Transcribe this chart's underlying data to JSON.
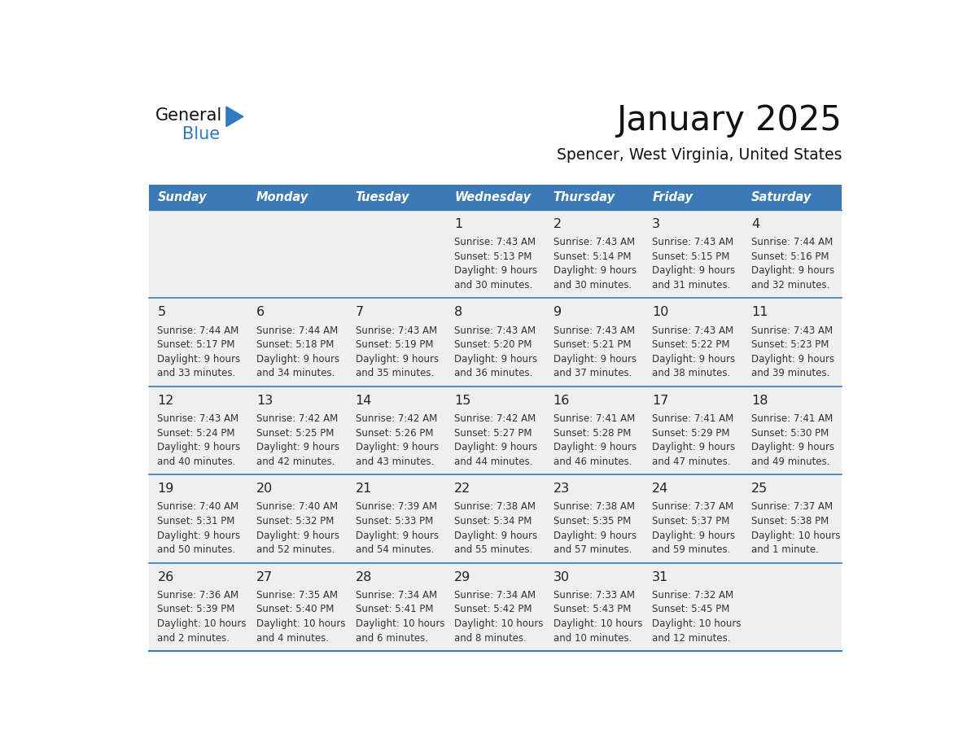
{
  "title": "January 2025",
  "subtitle": "Spencer, West Virginia, United States",
  "header_color": "#3c7ab5",
  "header_text_color": "#ffffff",
  "cell_bg_color": "#efefef",
  "separator_line_color": "#3c7ab5",
  "day_number_color": "#222222",
  "text_color": "#333333",
  "days_of_week": [
    "Sunday",
    "Monday",
    "Tuesday",
    "Wednesday",
    "Thursday",
    "Friday",
    "Saturday"
  ],
  "calendar_data": [
    [
      {
        "day": "",
        "sunrise": "",
        "sunset": "",
        "daylight_l1": "",
        "daylight_l2": ""
      },
      {
        "day": "",
        "sunrise": "",
        "sunset": "",
        "daylight_l1": "",
        "daylight_l2": ""
      },
      {
        "day": "",
        "sunrise": "",
        "sunset": "",
        "daylight_l1": "",
        "daylight_l2": ""
      },
      {
        "day": "1",
        "sunrise": "Sunrise: 7:43 AM",
        "sunset": "Sunset: 5:13 PM",
        "daylight_l1": "Daylight: 9 hours",
        "daylight_l2": "and 30 minutes."
      },
      {
        "day": "2",
        "sunrise": "Sunrise: 7:43 AM",
        "sunset": "Sunset: 5:14 PM",
        "daylight_l1": "Daylight: 9 hours",
        "daylight_l2": "and 30 minutes."
      },
      {
        "day": "3",
        "sunrise": "Sunrise: 7:43 AM",
        "sunset": "Sunset: 5:15 PM",
        "daylight_l1": "Daylight: 9 hours",
        "daylight_l2": "and 31 minutes."
      },
      {
        "day": "4",
        "sunrise": "Sunrise: 7:44 AM",
        "sunset": "Sunset: 5:16 PM",
        "daylight_l1": "Daylight: 9 hours",
        "daylight_l2": "and 32 minutes."
      }
    ],
    [
      {
        "day": "5",
        "sunrise": "Sunrise: 7:44 AM",
        "sunset": "Sunset: 5:17 PM",
        "daylight_l1": "Daylight: 9 hours",
        "daylight_l2": "and 33 minutes."
      },
      {
        "day": "6",
        "sunrise": "Sunrise: 7:44 AM",
        "sunset": "Sunset: 5:18 PM",
        "daylight_l1": "Daylight: 9 hours",
        "daylight_l2": "and 34 minutes."
      },
      {
        "day": "7",
        "sunrise": "Sunrise: 7:43 AM",
        "sunset": "Sunset: 5:19 PM",
        "daylight_l1": "Daylight: 9 hours",
        "daylight_l2": "and 35 minutes."
      },
      {
        "day": "8",
        "sunrise": "Sunrise: 7:43 AM",
        "sunset": "Sunset: 5:20 PM",
        "daylight_l1": "Daylight: 9 hours",
        "daylight_l2": "and 36 minutes."
      },
      {
        "day": "9",
        "sunrise": "Sunrise: 7:43 AM",
        "sunset": "Sunset: 5:21 PM",
        "daylight_l1": "Daylight: 9 hours",
        "daylight_l2": "and 37 minutes."
      },
      {
        "day": "10",
        "sunrise": "Sunrise: 7:43 AM",
        "sunset": "Sunset: 5:22 PM",
        "daylight_l1": "Daylight: 9 hours",
        "daylight_l2": "and 38 minutes."
      },
      {
        "day": "11",
        "sunrise": "Sunrise: 7:43 AM",
        "sunset": "Sunset: 5:23 PM",
        "daylight_l1": "Daylight: 9 hours",
        "daylight_l2": "and 39 minutes."
      }
    ],
    [
      {
        "day": "12",
        "sunrise": "Sunrise: 7:43 AM",
        "sunset": "Sunset: 5:24 PM",
        "daylight_l1": "Daylight: 9 hours",
        "daylight_l2": "and 40 minutes."
      },
      {
        "day": "13",
        "sunrise": "Sunrise: 7:42 AM",
        "sunset": "Sunset: 5:25 PM",
        "daylight_l1": "Daylight: 9 hours",
        "daylight_l2": "and 42 minutes."
      },
      {
        "day": "14",
        "sunrise": "Sunrise: 7:42 AM",
        "sunset": "Sunset: 5:26 PM",
        "daylight_l1": "Daylight: 9 hours",
        "daylight_l2": "and 43 minutes."
      },
      {
        "day": "15",
        "sunrise": "Sunrise: 7:42 AM",
        "sunset": "Sunset: 5:27 PM",
        "daylight_l1": "Daylight: 9 hours",
        "daylight_l2": "and 44 minutes."
      },
      {
        "day": "16",
        "sunrise": "Sunrise: 7:41 AM",
        "sunset": "Sunset: 5:28 PM",
        "daylight_l1": "Daylight: 9 hours",
        "daylight_l2": "and 46 minutes."
      },
      {
        "day": "17",
        "sunrise": "Sunrise: 7:41 AM",
        "sunset": "Sunset: 5:29 PM",
        "daylight_l1": "Daylight: 9 hours",
        "daylight_l2": "and 47 minutes."
      },
      {
        "day": "18",
        "sunrise": "Sunrise: 7:41 AM",
        "sunset": "Sunset: 5:30 PM",
        "daylight_l1": "Daylight: 9 hours",
        "daylight_l2": "and 49 minutes."
      }
    ],
    [
      {
        "day": "19",
        "sunrise": "Sunrise: 7:40 AM",
        "sunset": "Sunset: 5:31 PM",
        "daylight_l1": "Daylight: 9 hours",
        "daylight_l2": "and 50 minutes."
      },
      {
        "day": "20",
        "sunrise": "Sunrise: 7:40 AM",
        "sunset": "Sunset: 5:32 PM",
        "daylight_l1": "Daylight: 9 hours",
        "daylight_l2": "and 52 minutes."
      },
      {
        "day": "21",
        "sunrise": "Sunrise: 7:39 AM",
        "sunset": "Sunset: 5:33 PM",
        "daylight_l1": "Daylight: 9 hours",
        "daylight_l2": "and 54 minutes."
      },
      {
        "day": "22",
        "sunrise": "Sunrise: 7:38 AM",
        "sunset": "Sunset: 5:34 PM",
        "daylight_l1": "Daylight: 9 hours",
        "daylight_l2": "and 55 minutes."
      },
      {
        "day": "23",
        "sunrise": "Sunrise: 7:38 AM",
        "sunset": "Sunset: 5:35 PM",
        "daylight_l1": "Daylight: 9 hours",
        "daylight_l2": "and 57 minutes."
      },
      {
        "day": "24",
        "sunrise": "Sunrise: 7:37 AM",
        "sunset": "Sunset: 5:37 PM",
        "daylight_l1": "Daylight: 9 hours",
        "daylight_l2": "and 59 minutes."
      },
      {
        "day": "25",
        "sunrise": "Sunrise: 7:37 AM",
        "sunset": "Sunset: 5:38 PM",
        "daylight_l1": "Daylight: 10 hours",
        "daylight_l2": "and 1 minute."
      }
    ],
    [
      {
        "day": "26",
        "sunrise": "Sunrise: 7:36 AM",
        "sunset": "Sunset: 5:39 PM",
        "daylight_l1": "Daylight: 10 hours",
        "daylight_l2": "and 2 minutes."
      },
      {
        "day": "27",
        "sunrise": "Sunrise: 7:35 AM",
        "sunset": "Sunset: 5:40 PM",
        "daylight_l1": "Daylight: 10 hours",
        "daylight_l2": "and 4 minutes."
      },
      {
        "day": "28",
        "sunrise": "Sunrise: 7:34 AM",
        "sunset": "Sunset: 5:41 PM",
        "daylight_l1": "Daylight: 10 hours",
        "daylight_l2": "and 6 minutes."
      },
      {
        "day": "29",
        "sunrise": "Sunrise: 7:34 AM",
        "sunset": "Sunset: 5:42 PM",
        "daylight_l1": "Daylight: 10 hours",
        "daylight_l2": "and 8 minutes."
      },
      {
        "day": "30",
        "sunrise": "Sunrise: 7:33 AM",
        "sunset": "Sunset: 5:43 PM",
        "daylight_l1": "Daylight: 10 hours",
        "daylight_l2": "and 10 minutes."
      },
      {
        "day": "31",
        "sunrise": "Sunrise: 7:32 AM",
        "sunset": "Sunset: 5:45 PM",
        "daylight_l1": "Daylight: 10 hours",
        "daylight_l2": "and 12 minutes."
      },
      {
        "day": "",
        "sunrise": "",
        "sunset": "",
        "daylight_l1": "",
        "daylight_l2": ""
      }
    ]
  ]
}
